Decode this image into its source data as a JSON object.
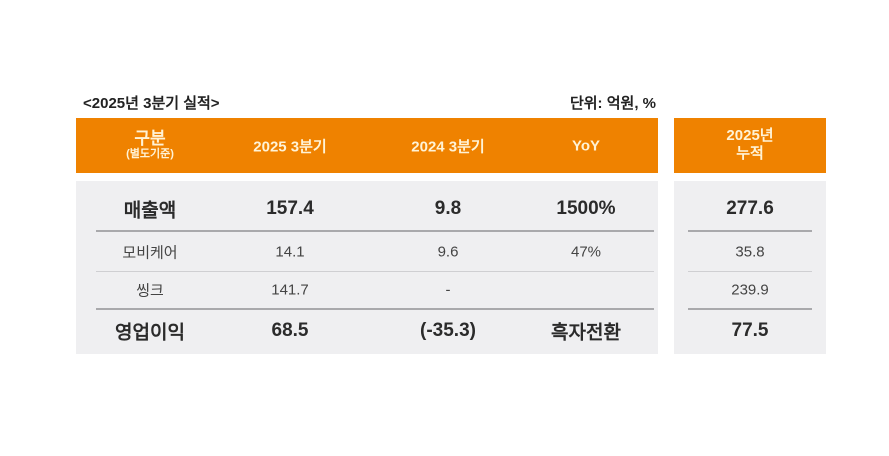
{
  "caption": "<2025년 3분기 실적>",
  "unit": "단위: 억원, %",
  "colors": {
    "header": "#ef8200",
    "body": "#efeff1",
    "header_text": "#fff3d6"
  },
  "header": {
    "category": "구분",
    "category_note": "(별도기준)",
    "q3_2025": "2025 3분기",
    "q3_2024": "2024 3분기",
    "yoy": "YoY",
    "cumulative_line1": "2025년",
    "cumulative_line2": "누적"
  },
  "rows": [
    {
      "label": "매출액",
      "q3_2025": "157.4",
      "q3_2024": "9.8",
      "yoy": "1500%",
      "cumulative": "277.6"
    },
    {
      "label": "모비케어",
      "q3_2025": "14.1",
      "q3_2024": "9.6",
      "yoy": "47%",
      "cumulative": "35.8"
    },
    {
      "label": "씽크",
      "q3_2025": "141.7",
      "q3_2024": "-",
      "yoy": "",
      "cumulative": "239.9"
    },
    {
      "label": "영업이익",
      "q3_2025": "68.5",
      "q3_2024": "(-35.3)",
      "yoy": "흑자전환",
      "cumulative": "77.5"
    }
  ]
}
